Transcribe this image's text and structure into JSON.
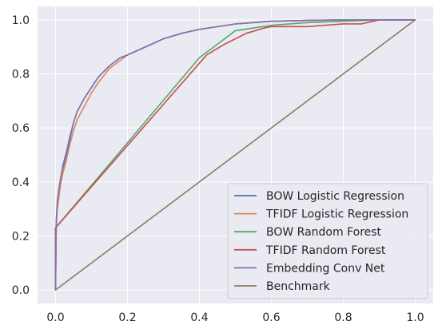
{
  "chart_data": {
    "type": "line",
    "title": "",
    "xlabel": "",
    "ylabel": "",
    "xlim": [
      -0.05,
      1.05
    ],
    "ylim": [
      -0.05,
      1.05
    ],
    "xticks": [
      "0.0",
      "0.2",
      "0.4",
      "0.6",
      "0.8",
      "1.0"
    ],
    "yticks": [
      "0.0",
      "0.2",
      "0.4",
      "0.6",
      "0.8",
      "1.0"
    ],
    "grid": true,
    "background": "#eaeaf2",
    "legend_position": "lower-right",
    "series": [
      {
        "name": "BOW Logistic Regression",
        "color": "#4c72b0",
        "x": [
          0.0,
          0.002,
          0.005,
          0.01,
          0.015,
          0.02,
          0.03,
          0.04,
          0.05,
          0.06,
          0.08,
          0.1,
          0.12,
          0.15,
          0.18,
          0.2,
          0.25,
          0.3,
          0.35,
          0.4,
          0.45,
          0.5,
          0.55,
          0.6,
          0.7,
          0.8,
          0.9,
          1.0
        ],
        "y": [
          0.0,
          0.25,
          0.32,
          0.38,
          0.42,
          0.45,
          0.5,
          0.56,
          0.62,
          0.66,
          0.71,
          0.75,
          0.79,
          0.83,
          0.86,
          0.87,
          0.9,
          0.93,
          0.95,
          0.965,
          0.975,
          0.985,
          0.99,
          0.995,
          0.998,
          1.0,
          1.0,
          1.0
        ]
      },
      {
        "name": "TFIDF Logistic Regression",
        "color": "#dd8452",
        "x": [
          0.0,
          0.002,
          0.005,
          0.01,
          0.015,
          0.02,
          0.03,
          0.04,
          0.05,
          0.06,
          0.08,
          0.1,
          0.12,
          0.15,
          0.18,
          0.2,
          0.25,
          0.3,
          0.35,
          0.4,
          0.45,
          0.5,
          0.55,
          0.6,
          0.7,
          0.8,
          0.9,
          1.0
        ],
        "y": [
          0.0,
          0.23,
          0.3,
          0.35,
          0.4,
          0.43,
          0.48,
          0.54,
          0.59,
          0.63,
          0.68,
          0.73,
          0.77,
          0.82,
          0.85,
          0.87,
          0.9,
          0.93,
          0.95,
          0.965,
          0.975,
          0.985,
          0.99,
          0.995,
          0.998,
          1.0,
          1.0,
          1.0
        ]
      },
      {
        "name": "BOW Random Forest",
        "color": "#55a868",
        "x": [
          0.0,
          0.0,
          0.4,
          0.45,
          0.5,
          0.55,
          0.6,
          0.7,
          0.8,
          0.9,
          1.0
        ],
        "y": [
          0.0,
          0.23,
          0.86,
          0.91,
          0.96,
          0.97,
          0.98,
          0.99,
          0.995,
          1.0,
          1.0
        ]
      },
      {
        "name": "TFIDF Random Forest",
        "color": "#c44e52",
        "x": [
          0.0,
          0.0,
          0.42,
          0.47,
          0.53,
          0.58,
          0.6,
          0.7,
          0.8,
          0.85,
          0.9,
          1.0
        ],
        "y": [
          0.0,
          0.23,
          0.87,
          0.91,
          0.95,
          0.97,
          0.975,
          0.975,
          0.985,
          0.985,
          1.0,
          1.0
        ]
      },
      {
        "name": "Embedding Conv Net",
        "color": "#8172b3",
        "x": [
          0.0,
          0.002,
          0.005,
          0.01,
          0.015,
          0.02,
          0.03,
          0.04,
          0.05,
          0.06,
          0.08,
          0.1,
          0.12,
          0.15,
          0.18,
          0.2,
          0.25,
          0.3,
          0.35,
          0.4,
          0.45,
          0.5,
          0.55,
          0.6,
          0.7,
          0.8,
          0.9,
          1.0
        ],
        "y": [
          0.0,
          0.26,
          0.33,
          0.38,
          0.42,
          0.46,
          0.51,
          0.57,
          0.62,
          0.66,
          0.71,
          0.75,
          0.79,
          0.83,
          0.86,
          0.87,
          0.9,
          0.93,
          0.95,
          0.965,
          0.975,
          0.985,
          0.99,
          0.995,
          0.998,
          1.0,
          1.0,
          1.0
        ]
      },
      {
        "name": "Benchmark",
        "color": "#937860",
        "x": [
          0.0,
          1.0
        ],
        "y": [
          0.0,
          1.0
        ]
      }
    ]
  }
}
